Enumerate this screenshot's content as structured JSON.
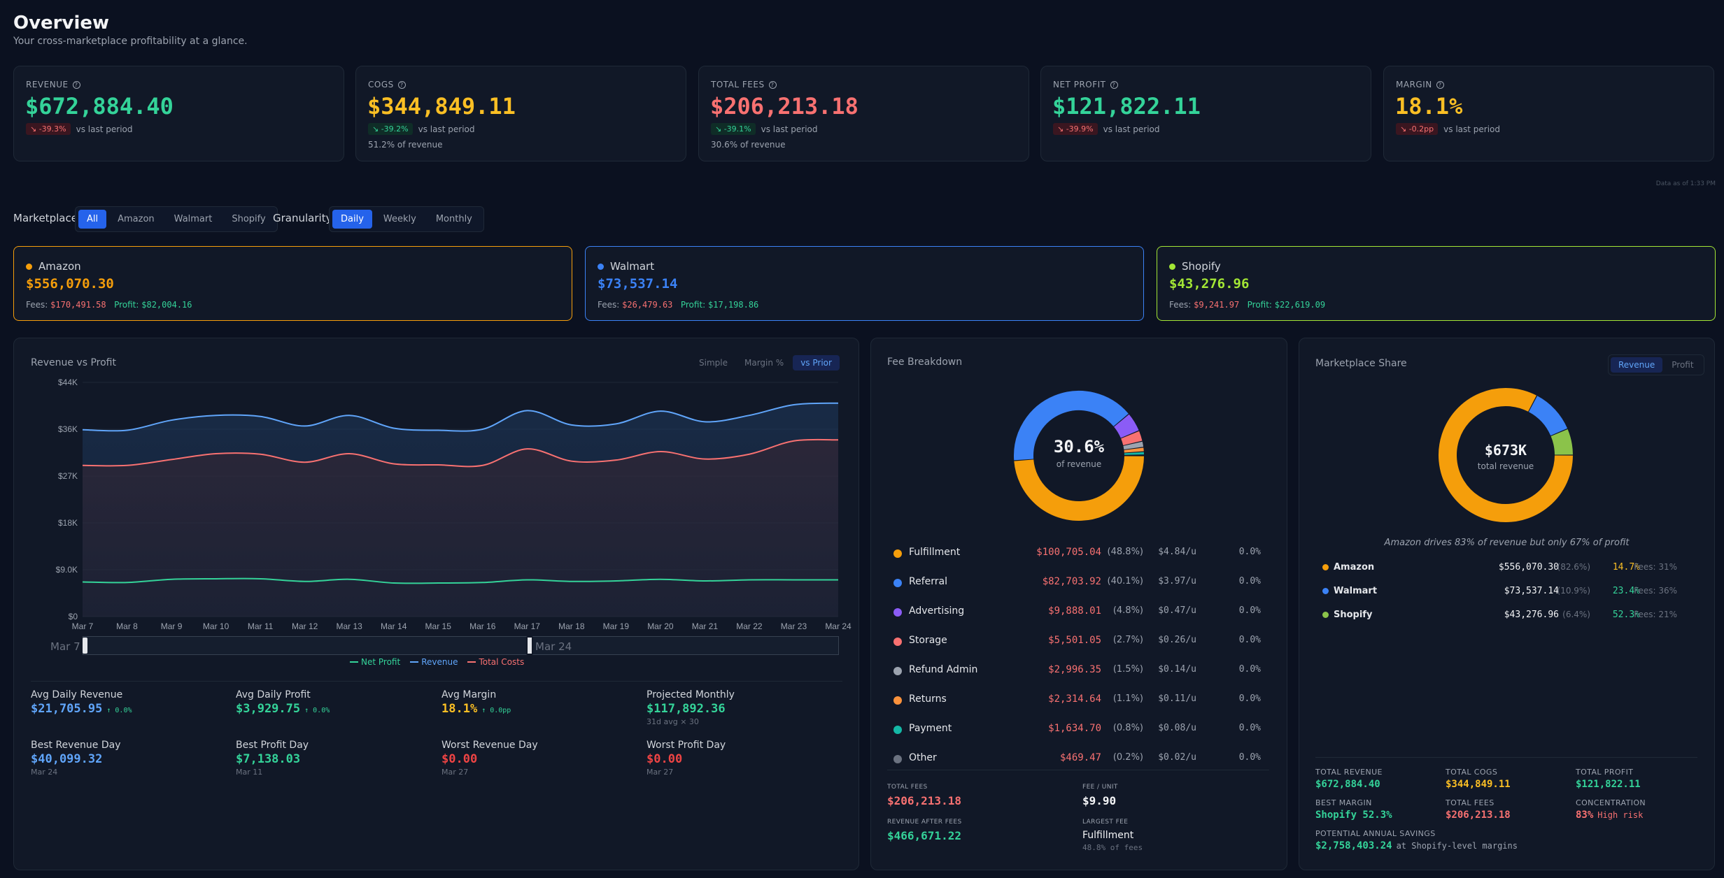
{
  "header": {
    "title": "Overview",
    "subtitle": "Your cross-marketplace profitability at a glance."
  },
  "kpis": [
    {
      "label": "REVENUE",
      "value": "$672,884.40",
      "delta": "↘ -39.3%",
      "delta_type": "down",
      "vs": "vs last period",
      "sub": "",
      "color": "#34d399"
    },
    {
      "label": "COGS",
      "value": "$344,849.11",
      "delta": "↘ -39.2%",
      "delta_type": "up",
      "vs": "vs last period",
      "sub": "51.2% of revenue",
      "color": "#fbbf24"
    },
    {
      "label": "TOTAL FEES",
      "value": "$206,213.18",
      "delta": "↘ -39.1%",
      "delta_type": "up",
      "vs": "vs last period",
      "sub": "30.6% of revenue",
      "color": "#f87171"
    },
    {
      "label": "NET PROFIT",
      "value": "$121,822.11",
      "delta": "↘ -39.9%",
      "delta_type": "down",
      "vs": "vs last period",
      "sub": "",
      "color": "#34d399"
    },
    {
      "label": "MARGIN",
      "value": "18.1%",
      "delta": "↘ -0.2pp",
      "delta_type": "down",
      "vs": "vs last period",
      "sub": "",
      "color": "#fbbf24"
    }
  ],
  "data_as_of": "Data as of 1:33 PM",
  "filters": {
    "marketplace_label": "Marketplace",
    "marketplace_options": [
      "All",
      "Amazon",
      "Walmart",
      "Shopify"
    ],
    "marketplace_selected": "All",
    "granularity_label": "Granularity",
    "granularity_options": [
      "Daily",
      "Weekly",
      "Monthly"
    ],
    "granularity_selected": "Daily"
  },
  "marketplaces": [
    {
      "name": "Amazon",
      "value": "$556,070.30",
      "fees_label": "Fees:",
      "fees": "$170,491.58",
      "profit_label": "Profit:",
      "profit": "$82,004.16",
      "color": "#f59e0b"
    },
    {
      "name": "Walmart",
      "value": "$73,537.14",
      "fees_label": "Fees:",
      "fees": "$26,479.63",
      "profit_label": "Profit:",
      "profit": "$17,198.86",
      "color": "#3b82f6"
    },
    {
      "name": "Shopify",
      "value": "$43,276.96",
      "fees_label": "Fees:",
      "fees": "$9,241.97",
      "profit_label": "Profit:",
      "profit": "$22,619.09",
      "color": "#a3e635"
    }
  ],
  "revenue_chart": {
    "title": "Revenue vs Profit",
    "modes": [
      "Simple",
      "Margin %",
      "vs Prior"
    ],
    "mode_selected": "vs Prior",
    "range_start": "Mar 7",
    "range_end": "Mar 24",
    "stats": [
      {
        "label": "Avg Daily Revenue",
        "value": "$21,705.95",
        "extra": "↑ 0.0%",
        "note": "",
        "color": "#60a5fa"
      },
      {
        "label": "Avg Daily Profit",
        "value": "$3,929.75",
        "extra": "↑ 0.0%",
        "note": "",
        "color": "#34d399"
      },
      {
        "label": "Avg Margin",
        "value": "18.1%",
        "extra": "↑ 0.0pp",
        "note": "",
        "color": "#fbbf24"
      },
      {
        "label": "Projected Monthly",
        "value": "$117,892.36",
        "extra": "",
        "note": "31d avg × 30",
        "color": "#34d399"
      },
      {
        "label": "Best Revenue Day",
        "value": "$40,099.32",
        "extra": "",
        "note": "Mar 24",
        "color": "#60a5fa"
      },
      {
        "label": "Best Profit Day",
        "value": "$7,138.03",
        "extra": "",
        "note": "Mar 11",
        "color": "#34d399"
      },
      {
        "label": "Worst Revenue Day",
        "value": "$0.00",
        "extra": "",
        "note": "Mar 27",
        "color": "#ef4444"
      },
      {
        "label": "Worst Profit Day",
        "value": "$0.00",
        "extra": "",
        "note": "Mar 27",
        "color": "#ef4444"
      }
    ]
  },
  "chart_data": {
    "type": "area",
    "title": "Revenue vs Profit",
    "xlabel": "",
    "ylabel": "",
    "categories": [
      "Mar 7",
      "Mar 8",
      "Mar 9",
      "Mar 10",
      "Mar 11",
      "Mar 12",
      "Mar 13",
      "Mar 14",
      "Mar 15",
      "Mar 16",
      "Mar 17",
      "Mar 18",
      "Mar 19",
      "Mar 20",
      "Mar 21",
      "Mar 22",
      "Mar 23",
      "Mar 24"
    ],
    "y_ticks": [
      "$0",
      "$9.0K",
      "$18K",
      "$27K",
      "$36K",
      "$44K"
    ],
    "ylim": [
      0,
      44000
    ],
    "legend": [
      "Net Profit",
      "Revenue",
      "Total Costs"
    ],
    "legend_position": "bottom",
    "series": [
      {
        "name": "Revenue",
        "color": "#60a5fa",
        "values": [
          35100,
          35000,
          36900,
          37800,
          37600,
          35800,
          37800,
          35400,
          35000,
          35200,
          38700,
          36000,
          36200,
          38600,
          36600,
          37800,
          39800,
          40100
        ]
      },
      {
        "name": "Total Costs",
        "color": "#f87171",
        "values": [
          28400,
          28400,
          29500,
          30600,
          30500,
          29000,
          30600,
          28700,
          28500,
          28400,
          31500,
          29200,
          29400,
          31000,
          29600,
          30500,
          33000,
          33200
        ]
      },
      {
        "name": "Net Profit",
        "color": "#34d399",
        "values": [
          6500,
          6400,
          7000,
          7100,
          7100,
          6600,
          7000,
          6300,
          6300,
          6400,
          6900,
          6600,
          6700,
          7000,
          6700,
          6900,
          6900,
          6900
        ]
      }
    ]
  },
  "fee_breakdown": {
    "title": "Fee Breakdown",
    "center_value": "30.6%",
    "center_label": "of revenue",
    "items": [
      {
        "name": "Fulfillment",
        "amount": "$100,705.04",
        "pct": "(48.8%)",
        "unit": "$4.84/u",
        "change": "0.0%",
        "share": 48.8,
        "color": "#f59e0b"
      },
      {
        "name": "Referral",
        "amount": "$82,703.92",
        "pct": "(40.1%)",
        "unit": "$3.97/u",
        "change": "0.0%",
        "share": 40.1,
        "color": "#3b82f6"
      },
      {
        "name": "Advertising",
        "amount": "$9,888.01",
        "pct": "(4.8%)",
        "unit": "$0.47/u",
        "change": "0.0%",
        "share": 4.8,
        "color": "#8b5cf6"
      },
      {
        "name": "Storage",
        "amount": "$5,501.05",
        "pct": "(2.7%)",
        "unit": "$0.26/u",
        "change": "0.0%",
        "share": 2.7,
        "color": "#f87171"
      },
      {
        "name": "Refund Admin",
        "amount": "$2,996.35",
        "pct": "(1.5%)",
        "unit": "$0.14/u",
        "change": "0.0%",
        "share": 1.5,
        "color": "#9ca3af"
      },
      {
        "name": "Returns",
        "amount": "$2,314.64",
        "pct": "(1.1%)",
        "unit": "$0.11/u",
        "change": "0.0%",
        "share": 1.1,
        "color": "#fb923c"
      },
      {
        "name": "Payment",
        "amount": "$1,634.70",
        "pct": "(0.8%)",
        "unit": "$0.08/u",
        "change": "0.0%",
        "share": 0.8,
        "color": "#14b8a6"
      },
      {
        "name": "Other",
        "amount": "$469.47",
        "pct": "(0.2%)",
        "unit": "$0.02/u",
        "change": "0.0%",
        "share": 0.2,
        "color": "#6b7280"
      }
    ],
    "summary": {
      "total_fees_label": "TOTAL FEES",
      "total_fees": "$206,213.18",
      "fee_unit_label": "FEE / UNIT",
      "fee_unit": "$9.90",
      "revenue_after_label": "REVENUE AFTER FEES",
      "revenue_after": "$466,671.22",
      "largest_label": "LARGEST FEE",
      "largest": "Fulfillment",
      "largest_note": "48.8% of fees"
    }
  },
  "marketplace_share": {
    "title": "Marketplace Share",
    "modes": [
      "Revenue",
      "Profit"
    ],
    "mode_selected": "Revenue",
    "center_value": "$673K",
    "center_label": "total revenue",
    "insight": "Amazon drives 83% of revenue but only 67% of profit",
    "items": [
      {
        "name": "Amazon",
        "amount": "$556,070.30",
        "pct": "(82.6%)",
        "margin": "14.7%",
        "fees": "Fees: 31%",
        "share": 82.6,
        "color": "#f59e0b",
        "margin_color": "#fbbf24"
      },
      {
        "name": "Walmart",
        "amount": "$73,537.14",
        "pct": "(10.9%)",
        "margin": "23.4%",
        "fees": "Fees: 36%",
        "share": 10.9,
        "color": "#3b82f6",
        "margin_color": "#34d399"
      },
      {
        "name": "Shopify",
        "amount": "$43,276.96",
        "pct": "(6.4%)",
        "margin": "52.3%",
        "fees": "Fees: 21%",
        "share": 6.4,
        "color": "#8bc34a",
        "margin_color": "#34d399"
      }
    ],
    "summary": {
      "total_revenue_label": "TOTAL REVENUE",
      "total_revenue": "$672,884.40",
      "total_cogs_label": "TOTAL COGS",
      "total_cogs": "$344,849.11",
      "total_profit_label": "TOTAL PROFIT",
      "total_profit": "$121,822.11",
      "best_margin_label": "BEST MARGIN",
      "best_margin": "Shopify 52.3%",
      "total_fees_label": "TOTAL FEES",
      "total_fees": "$206,213.18",
      "concentration_label": "CONCENTRATION",
      "concentration": "83%",
      "concentration_note": "High risk",
      "savings_label": "POTENTIAL ANNUAL SAVINGS",
      "savings": "$2,758,403.24",
      "savings_note": "at Shopify-level margins"
    }
  }
}
